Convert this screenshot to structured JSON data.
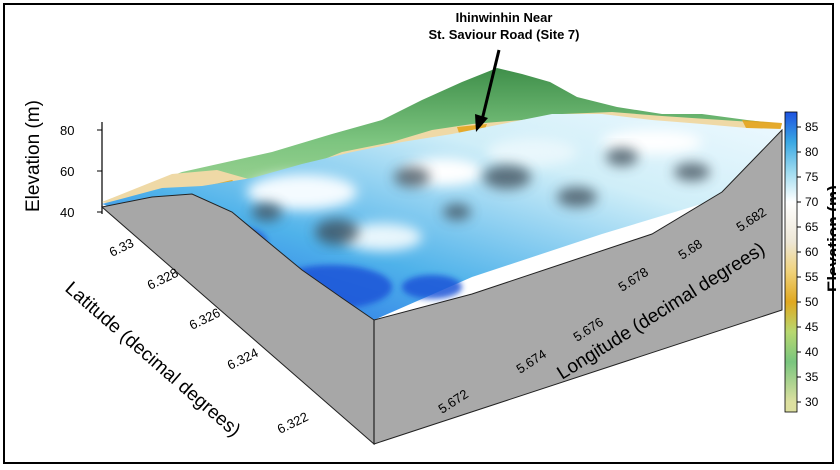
{
  "chart_data": {
    "type": "surface3d",
    "annotation": [
      "Ihinwinhin Near",
      "St. Saviour Road (Site 7)"
    ],
    "zlabel": "Elevation (m)",
    "zticks": [
      40,
      60,
      80
    ],
    "ylabel": "Latitude (decimal degrees)",
    "yticks": [
      "6.33",
      "6.328",
      "6.326",
      "6.324",
      "6.322"
    ],
    "xlabel": "Longitude (decimal degrees)",
    "xticks": [
      "5.672",
      "5.674",
      "5.676",
      "5.678",
      "5.68",
      "5.682"
    ],
    "colorbar": {
      "label": "Elevation (m)",
      "ticks": [
        85,
        80,
        75,
        70,
        65,
        60,
        55,
        50,
        45,
        40,
        35,
        30
      ],
      "range": [
        28,
        88
      ],
      "stops": [
        {
          "v": 30,
          "c": "#dde0a0"
        },
        {
          "v": 38,
          "c": "#79c57e"
        },
        {
          "v": 44,
          "c": "#b8d870"
        },
        {
          "v": 50,
          "c": "#e0a820"
        },
        {
          "v": 56,
          "c": "#f0d27a"
        },
        {
          "v": 62,
          "c": "#eee7d6"
        },
        {
          "v": 70,
          "c": "#ffffff"
        },
        {
          "v": 76,
          "c": "#9fdbef"
        },
        {
          "v": 82,
          "c": "#3aa8e3"
        },
        {
          "v": 88,
          "c": "#1e52e0"
        }
      ]
    }
  }
}
